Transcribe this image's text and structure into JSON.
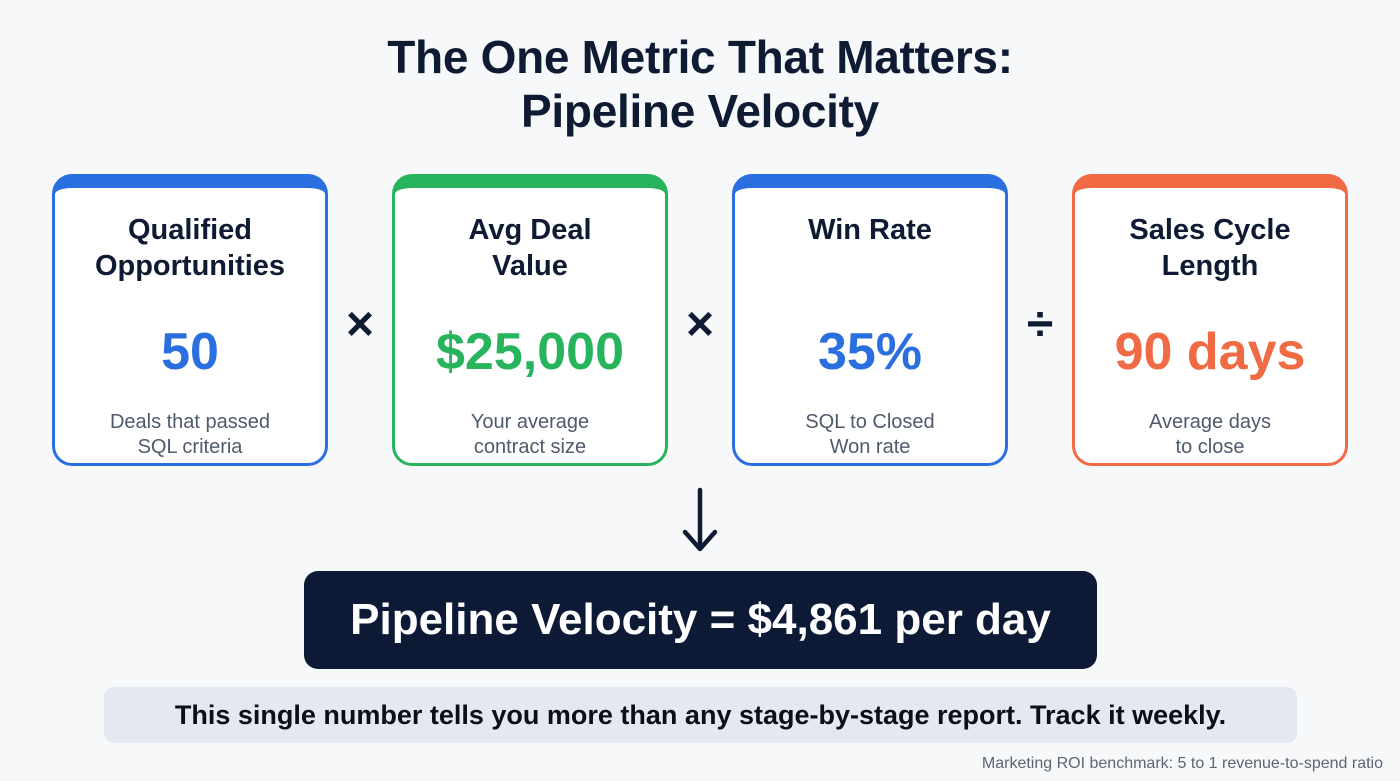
{
  "title": {
    "line1": "The One Metric That Matters:",
    "line2": "Pipeline Velocity"
  },
  "colors": {
    "blue": "#2a6fe0",
    "green": "#27b45d",
    "orange": "#f06a44",
    "navy": "#0c1a36"
  },
  "cards": [
    {
      "label_line1": "Qualified",
      "label_line2": "Opportunities",
      "value": "50",
      "desc_line1": "Deals that passed",
      "desc_line2": "SQL criteria",
      "accent": "blue"
    },
    {
      "label_line1": "Avg Deal",
      "label_line2": "Value",
      "value": "$25,000",
      "desc_line1": "Your average",
      "desc_line2": "contract size",
      "accent": "green"
    },
    {
      "label_line1": "Win Rate",
      "label_line2": "",
      "value": "35%",
      "desc_line1": "SQL to Closed",
      "desc_line2": "Won rate",
      "accent": "blue"
    },
    {
      "label_line1": "Sales Cycle",
      "label_line2": "Length",
      "value": "90 days",
      "desc_line1": "Average days",
      "desc_line2": "to close",
      "accent": "orange"
    }
  ],
  "operators": [
    "×",
    "×",
    "÷"
  ],
  "result": "Pipeline Velocity = $4,861 per day",
  "tagline": "This single number tells you more than any stage-by-stage report. Track it weekly.",
  "footnote": "Marketing ROI benchmark: 5 to 1 revenue-to-spend ratio"
}
